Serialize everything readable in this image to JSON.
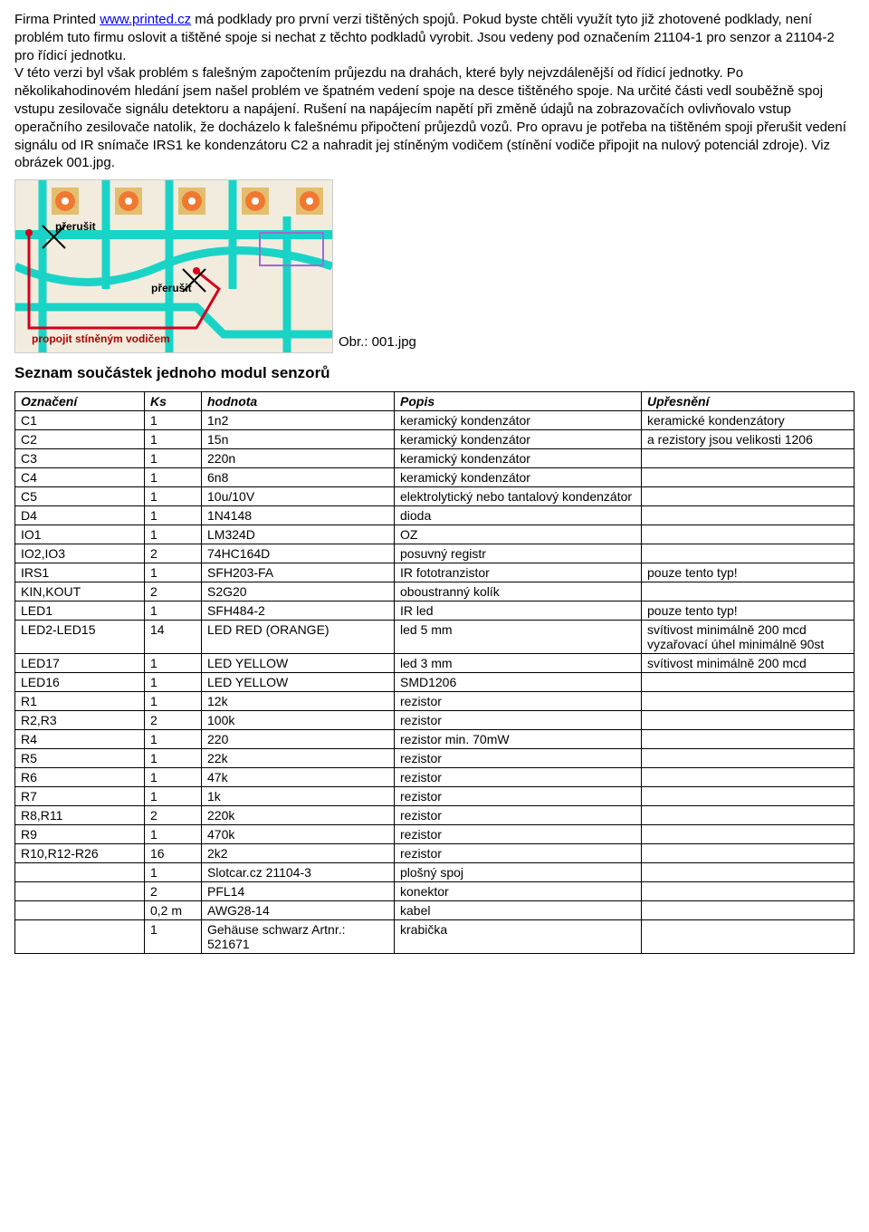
{
  "paragraph": {
    "pre_link": "Firma Printed ",
    "link_text": "www.printed.cz",
    "post_link": " má podklady pro první verzi tištěných spojů. Pokud byste chtěli využít tyto již zhotovené podklady, není problém tuto firmu oslovit a tištěné spoje si nechat z těchto podkladů vyrobit. Jsou vedeny pod označením 21104-1 pro senzor a 21104-2 pro řídicí jednotku.",
    "rest": "V této verzi byl však problém s falešným započtením průjezdu na drahách, které byly nejvzdálenější od řídicí jednotky. Po několikahodinovém hledání jsem našel problém ve špatném vedení spoje na desce tištěného spoje. Na určité části vedl souběžně spoj vstupu zesilovače signálu detektoru a napájení. Rušení na napájecím napětí při změně údajů na zobrazovačích ovlivňovalo vstup operačního zesilovače natolik, že docházelo k falešnému připočtení průjezdů vozů. Pro opravu je potřeba na tištěném spoji přerušit vedení signálu od IR snímače IRS1 ke kondenzátoru C2 a nahradit jej stíněným vodičem (stínění vodiče připojit na nulový potenciál zdroje). Viz obrázek 001.jpg."
  },
  "pcb": {
    "caption": "Obr.: 001.jpg",
    "anno_break1": "přerušit",
    "anno_break2": "přerušit",
    "anno_shield": "propojit stíněným vodičem",
    "colors": {
      "trace": "#19d4c6",
      "pad": "#f07830",
      "silk": "#9a6bd6",
      "wire": "#d4001a",
      "bg": "#f2ecdf",
      "copper": "#e4be6f"
    }
  },
  "heading": "Seznam součástek jednoho modul senzorů",
  "table": {
    "headers": [
      "Označení",
      "Ks",
      "hodnota",
      "Popis",
      "Upřesnění"
    ],
    "rows": [
      [
        "C1",
        "1",
        "1n2",
        "keramický kondenzátor",
        "keramické kondenzátory"
      ],
      [
        "C2",
        "1",
        "15n",
        "keramický kondenzátor",
        "a rezistory jsou velikosti 1206"
      ],
      [
        "C3",
        "1",
        "220n",
        "keramický kondenzátor",
        ""
      ],
      [
        "C4",
        "1",
        "6n8",
        "keramický kondenzátor",
        ""
      ],
      [
        "C5",
        "1",
        "10u/10V",
        "elektrolytický nebo tantalový kondenzátor",
        ""
      ],
      [
        "D4",
        "1",
        "1N4148",
        "dioda",
        ""
      ],
      [
        "IO1",
        "1",
        "LM324D",
        "OZ",
        ""
      ],
      [
        "IO2,IO3",
        "2",
        "74HC164D",
        "posuvný registr",
        ""
      ],
      [
        "IRS1",
        "1",
        "SFH203-FA",
        "IR fototranzistor",
        "pouze tento typ!"
      ],
      [
        "KIN,KOUT",
        "2",
        "S2G20",
        "oboustranný kolík",
        ""
      ],
      [
        "LED1",
        "1",
        "SFH484-2",
        "IR led",
        "pouze tento typ!"
      ],
      [
        "LED2-LED15",
        "14",
        "LED RED (ORANGE)",
        "led 5 mm",
        "svítivost minimálně 200 mcd vyzařovací úhel minimálně 90st"
      ],
      [
        "LED17",
        "1",
        "LED YELLOW",
        "led 3 mm",
        "svítivost minimálně 200 mcd"
      ],
      [
        "LED16",
        "1",
        "LED YELLOW",
        "SMD1206",
        ""
      ],
      [
        "R1",
        "1",
        "12k",
        "rezistor",
        ""
      ],
      [
        "R2,R3",
        "2",
        "100k",
        "rezistor",
        ""
      ],
      [
        "R4",
        "1",
        "220",
        "rezistor min. 70mW",
        ""
      ],
      [
        "R5",
        "1",
        "22k",
        "rezistor",
        ""
      ],
      [
        "R6",
        "1",
        "47k",
        "rezistor",
        ""
      ],
      [
        "R7",
        "1",
        "1k",
        "rezistor",
        ""
      ],
      [
        "R8,R11",
        "2",
        "220k",
        "rezistor",
        ""
      ],
      [
        "R9",
        "1",
        "470k",
        "rezistor",
        ""
      ],
      [
        "R10,R12-R26",
        "16",
        "2k2",
        "rezistor",
        ""
      ],
      [
        "",
        "1",
        "Slotcar.cz 21104-3",
        "plošný spoj",
        ""
      ],
      [
        "",
        "2",
        "PFL14",
        "konektor",
        ""
      ],
      [
        "",
        "0,2 m",
        "AWG28-14",
        "kabel",
        ""
      ],
      [
        "",
        "1",
        "Gehäuse schwarz Artnr.: 521671",
        "krabička",
        ""
      ]
    ]
  }
}
